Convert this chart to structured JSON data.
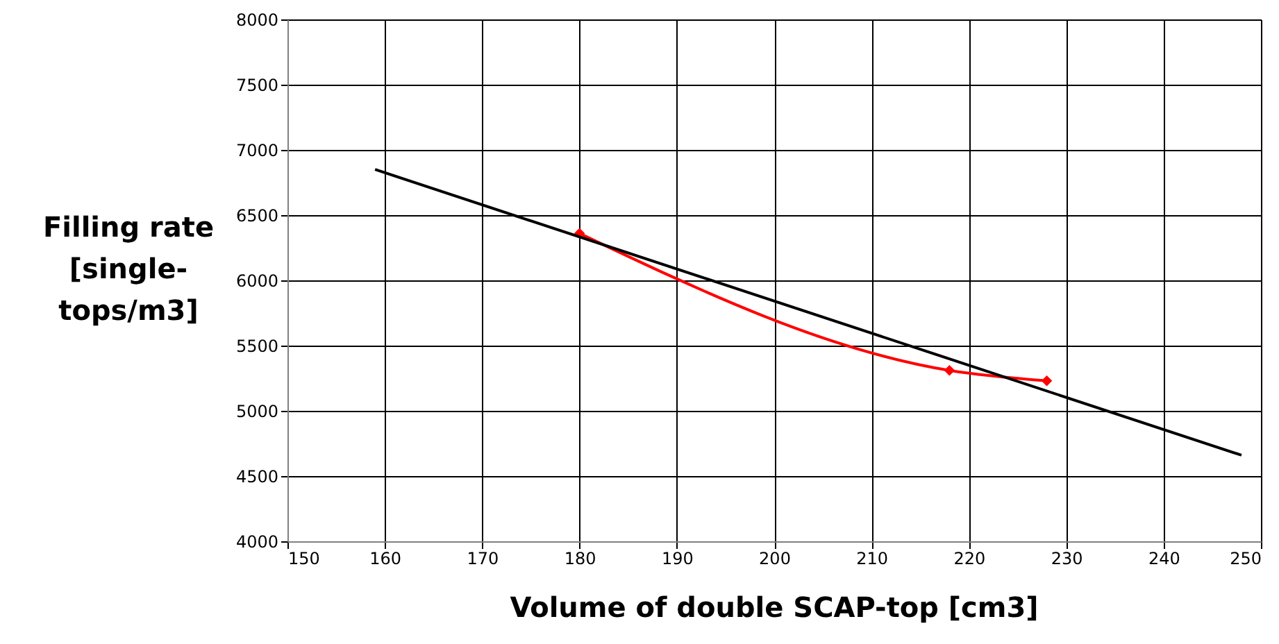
{
  "chart_data": {
    "type": "line",
    "xlabel": "Volume of double SCAP-top [cm3]",
    "ylabel": "Filling rate [single-tops/m3]",
    "xlim": [
      150,
      250
    ],
    "xticks": [
      150,
      160,
      170,
      180,
      190,
      200,
      210,
      220,
      230,
      240,
      250
    ],
    "ylim": [
      4000,
      8000
    ],
    "yticks": [
      4000,
      4500,
      5000,
      5500,
      6000,
      6500,
      7000,
      7500,
      8000
    ],
    "grid": true,
    "series": [
      {
        "color": "#ff0000",
        "marker": "diamond",
        "x": [
          180,
          218,
          228
        ],
        "values": [
          6360,
          5310,
          5230
        ]
      },
      {
        "color": "#000000",
        "marker": "none",
        "x": [
          159,
          248
        ],
        "values": [
          6850,
          4660
        ]
      }
    ]
  }
}
